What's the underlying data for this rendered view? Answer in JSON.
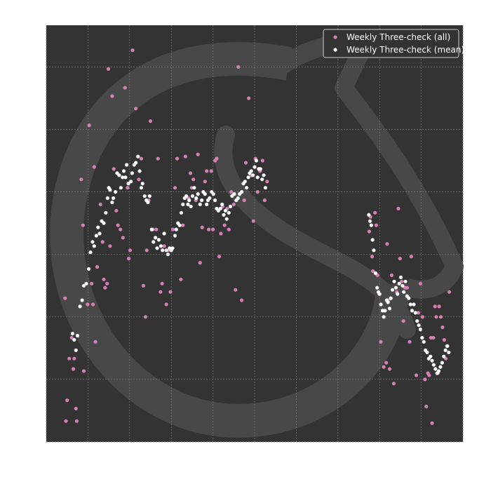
{
  "chart_data": {
    "type": "scatter",
    "title": "",
    "xlabel": "",
    "ylabel": "",
    "xlim": [
      0,
      100
    ],
    "ylim": [
      0,
      100
    ],
    "grid": true,
    "legend_position": "top-right",
    "background_color": "#333333",
    "grid_color": "#7a7a7a",
    "watermark_color": "#484848",
    "series": [
      {
        "name": "Weekly Three-check (all)",
        "color": "#d67fb4",
        "points": [
          [
            4.5,
            34.5
          ],
          [
            4.7,
            5.0
          ],
          [
            5.0,
            10.0
          ],
          [
            5.5,
            20.0
          ],
          [
            6.1,
            25.0
          ],
          [
            6.5,
            17.5
          ],
          [
            6.7,
            20.0
          ],
          [
            7.1,
            8.0
          ],
          [
            7.3,
            5.0
          ],
          [
            8.4,
            63.0
          ],
          [
            8.8,
            52.0
          ],
          [
            9.0,
            17.0
          ],
          [
            9.9,
            33.0
          ],
          [
            10.3,
            76.0
          ],
          [
            10.9,
            38.0
          ],
          [
            11.2,
            33.0
          ],
          [
            11.5,
            66.0
          ],
          [
            11.8,
            24.0
          ],
          [
            12.2,
            42.0
          ],
          [
            13.0,
            57.0
          ],
          [
            13.5,
            48.0
          ],
          [
            13.8,
            39.0
          ],
          [
            14.1,
            37.0
          ],
          [
            14.6,
            38.0
          ],
          [
            14.9,
            89.5
          ],
          [
            15.3,
            47.0
          ],
          [
            15.8,
            83.0
          ],
          [
            16.2,
            65.5
          ],
          [
            16.8,
            55.5
          ],
          [
            17.2,
            52.0
          ],
          [
            17.8,
            51.0
          ],
          [
            18.4,
            49.0
          ],
          [
            18.9,
            85.0
          ],
          [
            19.5,
            61.0
          ],
          [
            19.8,
            44.0
          ],
          [
            20.1,
            46.0
          ],
          [
            20.7,
            94.0
          ],
          [
            21.5,
            80.0
          ],
          [
            22.2,
            63.0
          ],
          [
            22.8,
            68.0
          ],
          [
            23.3,
            37.5
          ],
          [
            23.8,
            30.0
          ],
          [
            24.1,
            46.0
          ],
          [
            24.6,
            58.0
          ],
          [
            25.0,
            77.0
          ],
          [
            25.6,
            51.0
          ],
          [
            26.4,
            51.0
          ],
          [
            26.8,
            68.0
          ],
          [
            27.4,
            36.0
          ],
          [
            27.8,
            38.0
          ],
          [
            28.3,
            47.0
          ],
          [
            28.8,
            33.0
          ],
          [
            29.3,
            46.0
          ],
          [
            29.8,
            36.0
          ],
          [
            30.4,
            51.0
          ],
          [
            30.9,
            61.0
          ],
          [
            31.4,
            68.0
          ],
          [
            32.3,
            39.0
          ],
          [
            32.8,
            52.0
          ],
          [
            33.4,
            68.5
          ],
          [
            34.1,
            58.5
          ],
          [
            34.6,
            64.5
          ],
          [
            34.9,
            61.0
          ],
          [
            35.3,
            63.0
          ],
          [
            35.9,
            58.0
          ],
          [
            36.4,
            69.0
          ],
          [
            36.9,
            43.0
          ],
          [
            37.4,
            51.5
          ],
          [
            38.1,
            62.5
          ],
          [
            38.5,
            65.0
          ],
          [
            39.0,
            51.0
          ],
          [
            39.6,
            65.0
          ],
          [
            40.0,
            51.0
          ],
          [
            40.5,
            67.5
          ],
          [
            40.9,
            68.0
          ],
          [
            41.5,
            44.5
          ],
          [
            41.9,
            50.0
          ],
          [
            42.3,
            56.5
          ],
          [
            42.8,
            52.0
          ],
          [
            43.4,
            56.0
          ],
          [
            43.8,
            51.0
          ],
          [
            44.4,
            60.0
          ],
          [
            45.0,
            57.0
          ],
          [
            45.4,
            36.5
          ],
          [
            46.1,
            90.0
          ],
          [
            46.9,
            34.0
          ],
          [
            47.5,
            58.0
          ],
          [
            47.9,
            67.0
          ],
          [
            48.6,
            82.5
          ],
          [
            49.2,
            64.0
          ],
          [
            49.7,
            53.0
          ],
          [
            50.2,
            68.0
          ],
          [
            50.7,
            60.0
          ],
          [
            51.3,
            65.0
          ],
          [
            51.9,
            67.5
          ],
          [
            52.4,
            58.0
          ],
          [
            53.0,
            62.5
          ],
          [
            77.5,
            50.5
          ],
          [
            77.8,
            54.0
          ],
          [
            78.2,
            44.5
          ],
          [
            78.4,
            41.0
          ],
          [
            78.9,
            55.0
          ],
          [
            79.2,
            52.0
          ],
          [
            79.5,
            40.0
          ],
          [
            79.9,
            35.5
          ],
          [
            80.3,
            24.0
          ],
          [
            81.0,
            18.0
          ],
          [
            81.6,
            19.0
          ],
          [
            81.8,
            47.5
          ],
          [
            82.1,
            34.0
          ],
          [
            82.4,
            17.5
          ],
          [
            82.9,
            40.0
          ],
          [
            83.4,
            14.0
          ],
          [
            84.1,
            36.0
          ],
          [
            84.5,
            56.0
          ],
          [
            84.9,
            44.0
          ],
          [
            85.3,
            38.5
          ],
          [
            85.7,
            29.0
          ],
          [
            86.1,
            37.0
          ],
          [
            86.6,
            37.0
          ],
          [
            87.2,
            24.0
          ],
          [
            87.6,
            44.5
          ],
          [
            88.2,
            33.0
          ],
          [
            88.8,
            16.0
          ],
          [
            89.3,
            31.0
          ],
          [
            89.8,
            38.0
          ],
          [
            90.3,
            30.0
          ],
          [
            90.9,
            15.0
          ],
          [
            91.2,
            8.5
          ],
          [
            91.6,
            16.5
          ],
          [
            91.9,
            16.0
          ],
          [
            92.3,
            25.0
          ],
          [
            92.6,
            4.5
          ],
          [
            92.9,
            25.0
          ],
          [
            93.3,
            32.5
          ],
          [
            93.6,
            30.0
          ],
          [
            94.0,
            16.5
          ],
          [
            94.3,
            32.5
          ],
          [
            94.7,
            30.0
          ],
          [
            95.1,
            27.5
          ],
          [
            95.5,
            24.5
          ],
          [
            95.9,
            20.0
          ],
          [
            96.3,
            23.0
          ],
          [
            96.7,
            36.0
          ]
        ]
      },
      {
        "name": "Weekly Three-check (mean)",
        "color": "#ffffff",
        "points": [
          [
            6.3,
            26.0
          ],
          [
            6.7,
            24.5
          ],
          [
            7.1,
            22.0
          ],
          [
            7.5,
            25.5
          ],
          [
            8.1,
            32.5
          ],
          [
            8.6,
            34.0
          ],
          [
            9.0,
            37.5
          ],
          [
            9.6,
            38.0
          ],
          [
            10.2,
            41.5
          ],
          [
            10.6,
            45.5
          ],
          [
            11.1,
            48.0
          ],
          [
            11.5,
            47.0
          ],
          [
            12.0,
            49.5
          ],
          [
            12.4,
            51.5
          ],
          [
            12.8,
            50.0
          ],
          [
            13.3,
            53.0
          ],
          [
            13.8,
            52.5
          ],
          [
            14.3,
            55.0
          ],
          [
            14.7,
            58.5
          ],
          [
            15.0,
            61.0
          ],
          [
            15.3,
            60.5
          ],
          [
            15.8,
            57.5
          ],
          [
            16.1,
            58.5
          ],
          [
            16.6,
            60.0
          ],
          [
            17.0,
            64.5
          ],
          [
            17.5,
            64.0
          ],
          [
            17.9,
            61.0
          ],
          [
            18.3,
            63.5
          ],
          [
            18.6,
            65.0
          ],
          [
            19.0,
            63.5
          ],
          [
            19.3,
            66.5
          ],
          [
            19.7,
            62.0
          ],
          [
            20.3,
            62.5
          ],
          [
            20.6,
            64.5
          ],
          [
            21.1,
            66.5
          ],
          [
            21.5,
            67.0
          ],
          [
            22.0,
            68.5
          ],
          [
            22.4,
            65.0
          ],
          [
            22.8,
            61.0
          ],
          [
            23.1,
            62.0
          ],
          [
            23.6,
            59.0
          ],
          [
            24.0,
            58.0
          ],
          [
            24.4,
            57.5
          ],
          [
            24.8,
            59.0
          ],
          [
            25.3,
            51.0
          ],
          [
            25.7,
            48.0
          ],
          [
            26.2,
            49.0
          ],
          [
            26.6,
            46.5
          ],
          [
            27.0,
            48.5
          ],
          [
            27.5,
            47.0
          ],
          [
            27.9,
            46.0
          ],
          [
            28.3,
            50.0
          ],
          [
            28.8,
            46.0
          ],
          [
            29.2,
            45.0
          ],
          [
            29.6,
            46.5
          ],
          [
            30.0,
            46.0
          ],
          [
            30.3,
            46.5
          ],
          [
            30.9,
            49.5
          ],
          [
            31.2,
            51.0
          ],
          [
            31.6,
            52.5
          ],
          [
            32.0,
            52.0
          ],
          [
            32.4,
            55.0
          ],
          [
            32.8,
            57.0
          ],
          [
            33.2,
            58.5
          ],
          [
            33.6,
            59.0
          ],
          [
            34.0,
            57.0
          ],
          [
            34.3,
            58.0
          ],
          [
            34.7,
            56.5
          ],
          [
            35.1,
            59.0
          ],
          [
            35.5,
            61.0
          ],
          [
            36.0,
            58.5
          ],
          [
            36.4,
            59.5
          ],
          [
            36.9,
            57.0
          ],
          [
            37.3,
            58.0
          ],
          [
            37.7,
            60.0
          ],
          [
            38.1,
            59.5
          ],
          [
            38.5,
            57.0
          ],
          [
            38.8,
            58.0
          ],
          [
            39.2,
            58.5
          ],
          [
            39.7,
            60.0
          ],
          [
            40.1,
            59.5
          ],
          [
            40.5,
            58.0
          ],
          [
            40.9,
            56.0
          ],
          [
            41.3,
            55.5
          ],
          [
            41.8,
            56.0
          ],
          [
            42.2,
            57.0
          ],
          [
            42.6,
            54.5
          ],
          [
            43.0,
            55.5
          ],
          [
            43.3,
            53.5
          ],
          [
            43.8,
            55.0
          ],
          [
            44.2,
            56.5
          ],
          [
            44.6,
            59.0
          ],
          [
            45.1,
            59.5
          ],
          [
            45.6,
            58.0
          ],
          [
            46.0,
            58.5
          ],
          [
            46.4,
            59.5
          ],
          [
            46.9,
            60.0
          ],
          [
            47.3,
            62.0
          ],
          [
            47.7,
            62.5
          ],
          [
            48.1,
            61.0
          ],
          [
            48.5,
            63.5
          ],
          [
            48.8,
            64.5
          ],
          [
            49.2,
            65.0
          ],
          [
            49.6,
            64.0
          ],
          [
            50.0,
            66.0
          ],
          [
            50.4,
            67.5
          ],
          [
            50.7,
            63.5
          ],
          [
            51.0,
            65.5
          ],
          [
            51.4,
            65.5
          ],
          [
            51.8,
            63.0
          ],
          [
            52.2,
            64.0
          ],
          [
            52.6,
            61.0
          ],
          [
            77.4,
            54.5
          ],
          [
            77.7,
            53.0
          ],
          [
            78.0,
            52.0
          ],
          [
            78.3,
            48.5
          ],
          [
            78.6,
            46.0
          ],
          [
            79.0,
            40.5
          ],
          [
            79.4,
            37.0
          ],
          [
            79.7,
            36.0
          ],
          [
            80.0,
            35.5
          ],
          [
            80.3,
            33.0
          ],
          [
            80.7,
            31.5
          ],
          [
            81.0,
            30.0
          ],
          [
            81.3,
            31.5
          ],
          [
            81.7,
            34.0
          ],
          [
            82.0,
            33.5
          ],
          [
            82.4,
            32.0
          ],
          [
            82.7,
            34.5
          ],
          [
            83.1,
            36.5
          ],
          [
            83.5,
            38.5
          ],
          [
            83.9,
            37.0
          ],
          [
            84.3,
            35.5
          ],
          [
            84.7,
            38.0
          ],
          [
            85.1,
            39.5
          ],
          [
            85.5,
            37.5
          ],
          [
            85.8,
            36.0
          ],
          [
            86.2,
            38.5
          ],
          [
            86.6,
            35.0
          ],
          [
            87.0,
            34.5
          ],
          [
            87.4,
            33.0
          ],
          [
            87.8,
            31.5
          ],
          [
            88.2,
            33.0
          ],
          [
            88.6,
            31.0
          ],
          [
            89.0,
            29.0
          ],
          [
            89.4,
            28.0
          ],
          [
            89.8,
            27.0
          ],
          [
            90.2,
            25.0
          ],
          [
            90.6,
            24.0
          ],
          [
            91.0,
            22.0
          ],
          [
            91.4,
            21.5
          ],
          [
            91.8,
            20.0
          ],
          [
            92.2,
            20.5
          ],
          [
            92.6,
            19.5
          ],
          [
            93.0,
            18.5
          ],
          [
            93.4,
            17.5
          ],
          [
            93.8,
            16.5
          ],
          [
            94.2,
            17.0
          ],
          [
            94.6,
            18.0
          ],
          [
            95.0,
            19.0
          ],
          [
            95.4,
            20.5
          ],
          [
            95.8,
            22.0
          ],
          [
            96.2,
            23.0
          ],
          [
            96.6,
            21.5
          ]
        ]
      }
    ]
  }
}
